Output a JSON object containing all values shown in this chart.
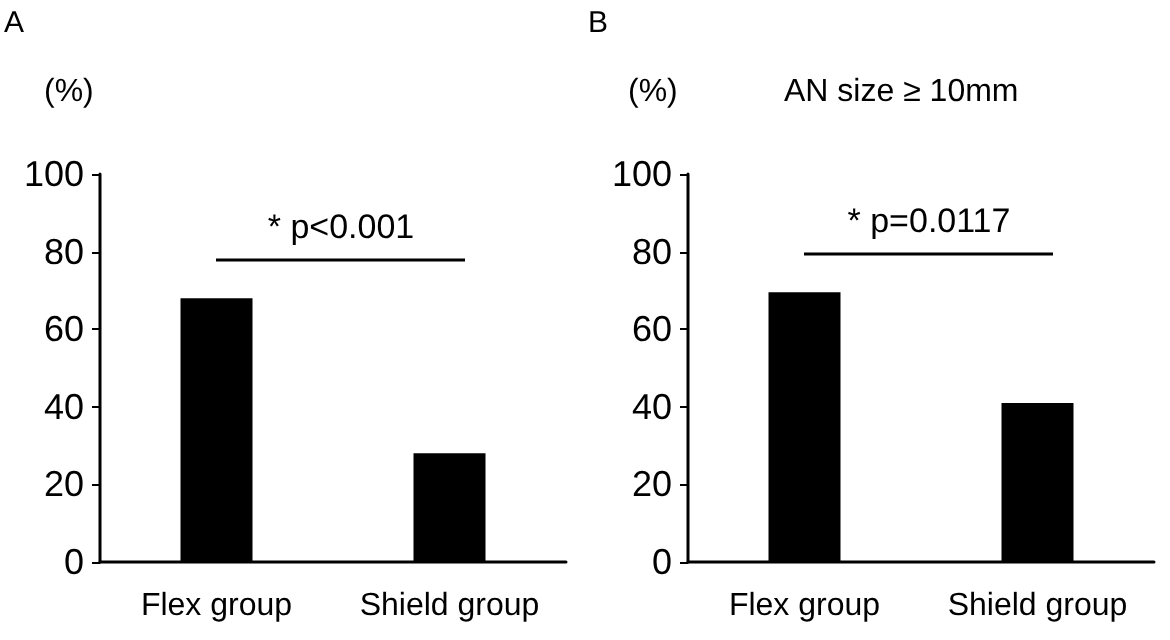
{
  "chart_data": [
    {
      "type": "bar",
      "title": "A",
      "ylabel": "(%)",
      "categories": [
        "Flex group",
        "Shield group"
      ],
      "values": [
        68,
        28
      ],
      "color": "#000000",
      "ylim": [
        0,
        100
      ],
      "yticks": [
        0,
        20,
        40,
        60,
        80,
        100
      ],
      "grid": false,
      "annotations": [
        "* p<0.001"
      ]
    },
    {
      "type": "bar",
      "title": "B",
      "ylabel": "(%)",
      "subtitle": "AN size ≥ 10mm",
      "categories": [
        "Flex group",
        "Shield group"
      ],
      "values": [
        69.5,
        41
      ],
      "color": "#000000",
      "ylim": [
        0,
        100
      ],
      "yticks": [
        0,
        20,
        40,
        60,
        80,
        100
      ],
      "grid": false,
      "annotations": [
        "* p=0.0117"
      ]
    }
  ]
}
